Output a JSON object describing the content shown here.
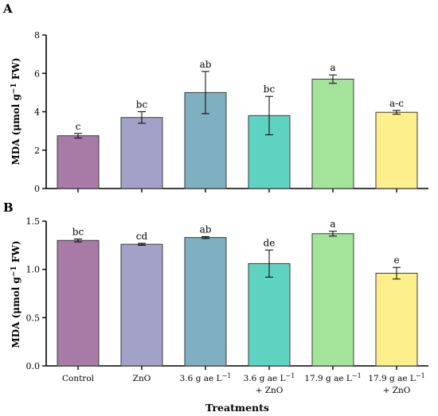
{
  "chart_data": [
    {
      "type": "bar",
      "panel": "A",
      "ylabel": "MDA (μmol g",
      "ylabel_sup": "−1",
      "ylabel_tail": " FW)",
      "ylim": [
        0,
        8
      ],
      "yticks": [
        "0",
        "2",
        "4",
        "6",
        "8"
      ],
      "values": [
        2.75,
        3.7,
        5.0,
        3.8,
        5.7,
        3.97
      ],
      "errors": [
        0.12,
        0.3,
        1.1,
        1.0,
        0.22,
        0.1
      ],
      "letters": [
        "c",
        "bc",
        "ab",
        "bc",
        "a",
        "a-c"
      ]
    },
    {
      "type": "bar",
      "panel": "B",
      "ylabel": "MDA (μmol g",
      "ylabel_sup": "−1",
      "ylabel_tail": " FW)",
      "ylim": [
        0,
        1.5
      ],
      "yticks": [
        "0.0",
        "0.5",
        "1.0",
        "1.5"
      ],
      "values": [
        1.3,
        1.26,
        1.33,
        1.06,
        1.37,
        0.96
      ],
      "errors": [
        0.015,
        0.01,
        0.01,
        0.14,
        0.025,
        0.06
      ],
      "letters": [
        "bc",
        "cd",
        "ab",
        "de",
        "a",
        "e"
      ]
    }
  ],
  "categories": [
    {
      "line1": "Control",
      "line2": ""
    },
    {
      "line1": "ZnO",
      "line2": ""
    },
    {
      "line1": "3.6 g ae L",
      "sup": "−1",
      "line2": ""
    },
    {
      "line1": "3.6 g ae L",
      "sup": "−1",
      "line2": "+ ZnO"
    },
    {
      "line1": "17.9 g ae L",
      "sup": "−1",
      "line2": ""
    },
    {
      "line1": "17.9 g ae L",
      "sup": "−1",
      "line2": "+ ZnO"
    }
  ],
  "colors": [
    "#a87ba6",
    "#a2a2c8",
    "#7fb0bf",
    "#5fd3c1",
    "#a3e49a",
    "#fdf08c"
  ],
  "xlabel": "Treatments"
}
